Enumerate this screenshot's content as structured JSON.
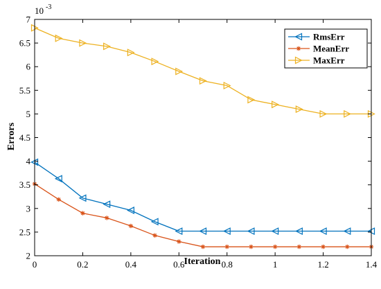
{
  "chart_data": {
    "type": "line",
    "xlabel": "Iteration",
    "ylabel": "Errors",
    "xlim": [
      0,
      1.4
    ],
    "ylim": [
      0.002,
      0.007
    ],
    "x_ticks": [
      "0",
      "0.2",
      "0.4",
      "0.6",
      "0.8",
      "1",
      "1.2",
      "1.4"
    ],
    "y_ticks": [
      "2",
      "2.5",
      "3",
      "3.5",
      "4",
      "4.5",
      "5",
      "5.5",
      "6",
      "6.5",
      "7"
    ],
    "y_exponent_base": "10",
    "y_exponent_power": "-3",
    "legend_position": "top-right",
    "grid": false,
    "x": [
      0,
      0.1,
      0.2,
      0.3,
      0.4,
      0.5,
      0.6,
      0.7,
      0.8,
      0.9,
      1.0,
      1.1,
      1.2,
      1.3,
      1.4
    ],
    "series": [
      {
        "name": "RmsErr",
        "color": "#0072BD",
        "marker": "triangle-left",
        "values": [
          0.00398,
          0.00363,
          0.00322,
          0.00309,
          0.00296,
          0.00272,
          0.00252,
          0.00252,
          0.00252,
          0.00252,
          0.00252,
          0.00252,
          0.00252,
          0.00252,
          0.00252
        ]
      },
      {
        "name": "MeanErr",
        "color": "#D95319",
        "marker": "asterisk",
        "values": [
          0.00352,
          0.00319,
          0.0029,
          0.0028,
          0.00263,
          0.00243,
          0.0023,
          0.00219,
          0.00219,
          0.00219,
          0.00219,
          0.00219,
          0.00219,
          0.00219,
          0.00219
        ]
      },
      {
        "name": "MaxErr",
        "color": "#EDB120",
        "marker": "triangle-right",
        "values": [
          0.00682,
          0.0066,
          0.0065,
          0.00643,
          0.0063,
          0.00611,
          0.0059,
          0.0057,
          0.0056,
          0.0053,
          0.0052,
          0.0051,
          0.005,
          0.005,
          0.005
        ]
      }
    ]
  }
}
